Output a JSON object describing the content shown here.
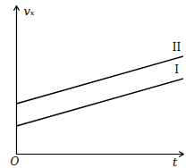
{
  "chart_data": {
    "type": "line",
    "x_label": "t",
    "y_label": "vₓ",
    "origin_label": "O",
    "x": [
      0,
      10
    ],
    "series": [
      {
        "name": "II",
        "color": "#000000",
        "values": [
          3.4,
          6.6
        ]
      },
      {
        "name": "I",
        "color": "#000000",
        "values": [
          1.9,
          5.1
        ]
      }
    ],
    "xlim": [
      0,
      10
    ],
    "ylim": [
      0,
      10
    ],
    "xticks": [],
    "yticks": [],
    "tick_labels": false,
    "grid": false
  }
}
